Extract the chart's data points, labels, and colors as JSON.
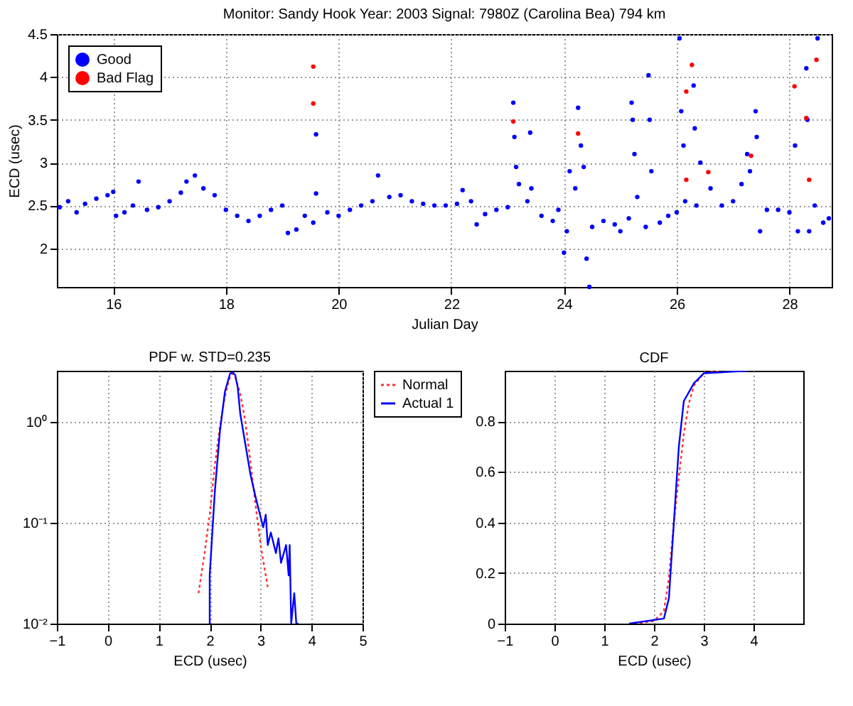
{
  "chart_data": [
    {
      "type": "scatter",
      "title": "Monitor: Sandy Hook  Year: 2003  Signal: 7980Z (Carolina Bea) 794 km",
      "xlabel": "Julian Day",
      "ylabel": "ECD (usec)",
      "xlim": [
        15,
        28.75
      ],
      "xticks": [
        16,
        18,
        20,
        22,
        24,
        26,
        28
      ],
      "ylim": [
        1.55,
        4.5
      ],
      "yticks": [
        2,
        2.5,
        3,
        3.5,
        4,
        4.5
      ],
      "grid": true,
      "legend": "top left",
      "marker": "circle",
      "series": [
        {
          "name": "Good",
          "color": "#0000ff",
          "x": [
            15.05,
            15.2,
            15.35,
            15.5,
            15.7,
            15.9,
            16.0,
            16.05,
            16.2,
            16.35,
            16.45,
            16.6,
            16.8,
            17.0,
            17.2,
            17.3,
            17.45,
            17.6,
            17.8,
            18.0,
            18.2,
            18.4,
            18.6,
            18.8,
            19.0,
            19.1,
            19.25,
            19.4,
            19.55,
            19.6,
            19.6,
            19.8,
            20.0,
            20.2,
            20.4,
            20.6,
            20.7,
            20.9,
            21.1,
            21.3,
            21.5,
            21.7,
            21.9,
            22.1,
            22.2,
            22.35,
            22.45,
            22.6,
            22.8,
            23.0,
            23.1,
            23.12,
            23.15,
            23.2,
            23.35,
            23.4,
            23.42,
            23.6,
            23.8,
            23.9,
            24.0,
            24.05,
            24.1,
            24.2,
            24.25,
            24.3,
            24.35,
            24.4,
            24.45,
            24.5,
            24.7,
            24.9,
            25.0,
            25.15,
            25.2,
            25.22,
            25.25,
            25.3,
            25.45,
            25.5,
            25.52,
            25.55,
            25.7,
            25.85,
            26.0,
            26.05,
            26.08,
            26.12,
            26.15,
            26.3,
            26.32,
            26.35,
            26.42,
            26.6,
            26.8,
            27.0,
            27.15,
            27.25,
            27.3,
            27.4,
            27.42,
            27.48,
            27.6,
            27.8,
            28.0,
            28.1,
            28.15,
            28.3,
            28.32,
            28.35,
            28.45,
            28.5,
            28.6,
            28.7
          ],
          "values": [
            2.48,
            2.55,
            2.42,
            2.52,
            2.58,
            2.62,
            2.66,
            2.38,
            2.42,
            2.5,
            2.78,
            2.45,
            2.48,
            2.55,
            2.65,
            2.78,
            2.85,
            2.7,
            2.62,
            2.45,
            2.38,
            2.32,
            2.38,
            2.45,
            2.5,
            2.18,
            2.22,
            2.38,
            2.3,
            2.64,
            3.33,
            2.42,
            2.38,
            2.45,
            2.5,
            2.55,
            2.85,
            2.6,
            2.62,
            2.55,
            2.52,
            2.5,
            2.5,
            2.52,
            2.68,
            2.55,
            2.28,
            2.4,
            2.45,
            2.48,
            3.7,
            3.3,
            2.95,
            2.75,
            2.55,
            3.35,
            2.7,
            2.38,
            2.32,
            2.45,
            1.95,
            2.2,
            2.9,
            2.7,
            3.64,
            3.2,
            2.95,
            1.88,
            1.55,
            2.25,
            2.32,
            2.28,
            2.2,
            2.35,
            3.7,
            3.5,
            3.1,
            2.6,
            2.25,
            4.02,
            3.5,
            2.9,
            2.3,
            2.38,
            2.42,
            4.45,
            3.6,
            3.2,
            2.55,
            3.9,
            3.4,
            2.5,
            3.0,
            2.7,
            2.5,
            2.55,
            2.75,
            3.1,
            2.9,
            3.6,
            3.3,
            2.2,
            2.45,
            2.45,
            2.42,
            3.2,
            2.2,
            4.1,
            3.5,
            2.2,
            2.5,
            4.45,
            2.3,
            2.35
          ]
        },
        {
          "name": "Bad Flag",
          "color": "#ff0000",
          "x": [
            19.55,
            19.55,
            23.1,
            24.25,
            26.17,
            26.27,
            26.17,
            26.56,
            27.32,
            28.09,
            28.48,
            28.3,
            28.35
          ],
          "values": [
            4.12,
            3.69,
            3.48,
            3.34,
            3.83,
            4.14,
            2.8,
            2.89,
            3.08,
            3.89,
            4.2,
            3.52,
            2.8
          ]
        }
      ]
    },
    {
      "type": "line",
      "title": "PDF w. STD=0.235",
      "xlabel": "ECD (usec)",
      "xlim": [
        -1,
        5
      ],
      "xticks": [
        -1,
        0,
        1,
        2,
        3,
        4,
        5
      ],
      "log": "y",
      "ylim": [
        0.01,
        3.2
      ],
      "yticks": [
        {
          "value": 1,
          "label": "10⁰"
        },
        {
          "value": 0.1,
          "label": "10⁻¹"
        },
        {
          "value": 0.01,
          "label": "10⁻²"
        }
      ],
      "grid": true,
      "legend": "right",
      "series": [
        {
          "name": "Normal",
          "color": "#ff3333",
          "line_style": "dotted",
          "x": [
            1.78,
            1.9,
            2.0,
            2.1,
            2.2,
            2.3,
            2.4,
            2.45,
            2.5,
            2.6,
            2.7,
            2.8,
            2.9,
            3.0,
            3.1,
            3.14
          ],
          "values": [
            0.02,
            0.05,
            0.12,
            0.37,
            0.9,
            1.8,
            2.8,
            3.0,
            2.8,
            1.9,
            1.0,
            0.4,
            0.15,
            0.06,
            0.03,
            0.023
          ]
        },
        {
          "name": "Actual 1",
          "color": "#0000ff",
          "line_style": "solid",
          "x": [
            2.0,
            2.0,
            2.1,
            2.2,
            2.3,
            2.4,
            2.45,
            2.5,
            2.55,
            2.6,
            2.7,
            2.8,
            2.9,
            2.97,
            3.05,
            3.1,
            3.14,
            3.2,
            3.3,
            3.35,
            3.4,
            3.5,
            3.55,
            3.57,
            3.6,
            3.66,
            3.7,
            3.74
          ],
          "values": [
            0.01,
            0.03,
            0.2,
            0.8,
            2.0,
            3.0,
            3.1,
            2.9,
            2.2,
            1.2,
            0.6,
            0.3,
            0.18,
            0.13,
            0.09,
            0.12,
            0.06,
            0.08,
            0.05,
            0.07,
            0.04,
            0.06,
            0.03,
            0.06,
            0.01,
            0.02,
            0.01,
            0.01
          ]
        }
      ]
    },
    {
      "type": "line",
      "title": "CDF",
      "xlabel": "ECD (usec)",
      "xlim": [
        -1,
        5
      ],
      "xticks": [
        -1,
        0,
        1,
        2,
        3,
        4
      ],
      "ylim": [
        0,
        1
      ],
      "yticks": [
        0,
        0.2,
        0.4,
        0.6,
        0.8
      ],
      "grid": true,
      "series": [
        {
          "color": "#ff3333",
          "line_style": "dotted",
          "x": [
            1.6,
            2.0,
            2.2,
            2.3,
            2.4,
            2.5,
            2.6,
            2.7,
            2.8,
            3.0,
            3.3
          ],
          "values": [
            0,
            0.01,
            0.05,
            0.18,
            0.4,
            0.58,
            0.75,
            0.87,
            0.94,
            0.99,
            1
          ]
        },
        {
          "color": "#0000ff",
          "line_style": "solid",
          "x": [
            1.5,
            2.2,
            2.3,
            2.4,
            2.5,
            2.6,
            2.8,
            3.0,
            3.9
          ],
          "values": [
            0,
            0.02,
            0.1,
            0.4,
            0.7,
            0.88,
            0.95,
            0.99,
            1
          ]
        }
      ]
    }
  ]
}
